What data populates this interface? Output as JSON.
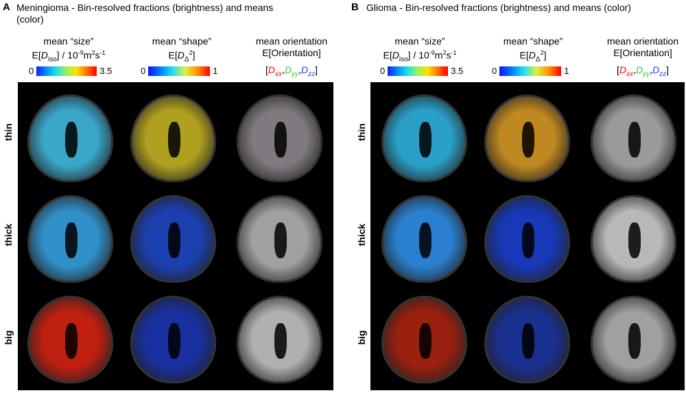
{
  "panelA": {
    "letter": "A",
    "title_line1": "Meningioma - Bin-resolved fractions (brightness) and means",
    "title_line2": "(color)"
  },
  "panelB": {
    "letter": "B",
    "title": "Glioma - Bin-resolved fractions (brightness) and means (color)"
  },
  "columns": {
    "size": {
      "line1": "mean “size”",
      "line2_pre": "E[",
      "line2_D": "D",
      "line2_sub": "iso",
      "line2_post": "] / 10",
      "line2_exp": "-9",
      "line2_unit": "m",
      "line2_exp2": "2",
      "line2_s": "s",
      "line2_exp3": "-1",
      "min": "0",
      "max": "3.5"
    },
    "shape": {
      "line1": "mean “shape”",
      "line2_pre": "E[",
      "line2_D": "D",
      "line2_sub": "Δ",
      "line2_sup": "2",
      "line2_post": "]",
      "min": "0",
      "max": "1"
    },
    "orientation": {
      "line1": "mean orientation",
      "line2": "E[Orientation]",
      "open": "[",
      "dxx": "D",
      "dxx_sub": "xx",
      "comma1": ",",
      "dyy": "D",
      "dyy_sub": "yy",
      "comma2": ",",
      "dzz": "D",
      "dzz_sub": "zz",
      "close": "]"
    }
  },
  "rows": [
    "thin",
    "thick",
    "big"
  ],
  "colors": {
    "red": "#ff0000",
    "green": "#2bd12b",
    "blue": "#1f3fff"
  }
}
